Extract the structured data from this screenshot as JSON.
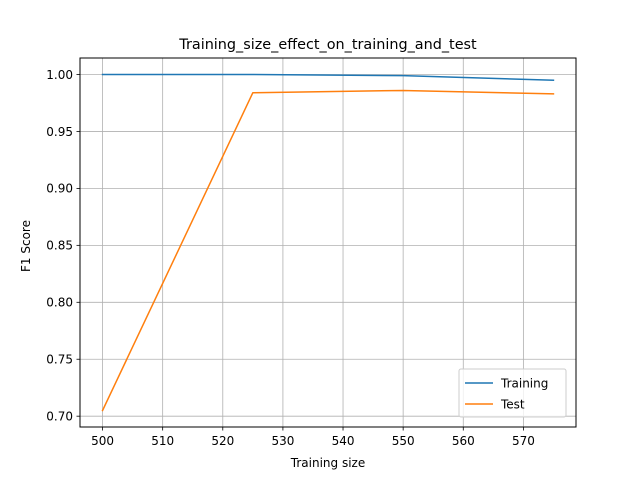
{
  "chart_data": {
    "type": "line",
    "title": "Training_size_effect_on_training_and_test",
    "xlabel": "Training size",
    "ylabel": "F1 Score",
    "xlim": [
      496.25,
      578.75
    ],
    "ylim": [
      0.6905,
      1.0145
    ],
    "xticks": [
      500,
      510,
      520,
      530,
      540,
      550,
      560,
      570
    ],
    "yticks": [
      0.7,
      0.75,
      0.8,
      0.85,
      0.9,
      0.95,
      1.0
    ],
    "ytick_labels": [
      "0.70",
      "0.75",
      "0.80",
      "0.85",
      "0.90",
      "0.95",
      "1.00"
    ],
    "grid": true,
    "legend_position": "lower-right",
    "x": [
      500,
      525,
      550,
      575
    ],
    "series": [
      {
        "name": "Training",
        "color": "#1f77b4",
        "values": [
          1.0,
          1.0,
          0.999,
          0.995
        ]
      },
      {
        "name": "Test",
        "color": "#ff7f0e",
        "values": [
          0.705,
          0.984,
          0.986,
          0.983
        ]
      }
    ]
  }
}
